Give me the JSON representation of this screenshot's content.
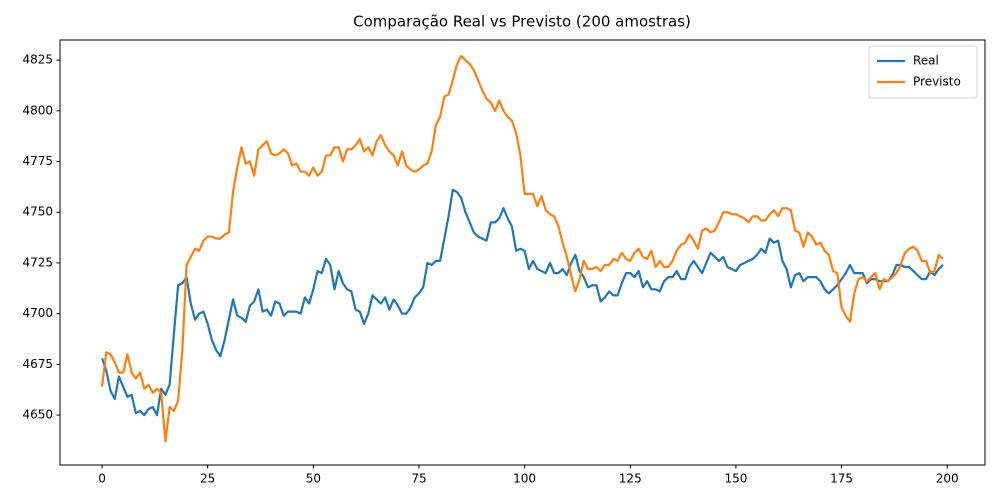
{
  "chart_data": {
    "type": "line",
    "title": "Comparação Real vs Previsto (200 amostras)",
    "x": [
      0,
      1,
      2,
      3,
      4,
      5,
      6,
      7,
      8,
      9,
      10,
      11,
      12,
      13,
      14,
      15,
      16,
      17,
      18,
      19,
      20,
      21,
      22,
      23,
      24,
      25,
      26,
      27,
      28,
      29,
      30,
      31,
      32,
      33,
      34,
      35,
      36,
      37,
      38,
      39,
      40,
      41,
      42,
      43,
      44,
      45,
      46,
      47,
      48,
      49,
      50,
      51,
      52,
      53,
      54,
      55,
      56,
      57,
      58,
      59,
      60,
      61,
      62,
      63,
      64,
      65,
      66,
      67,
      68,
      69,
      70,
      71,
      72,
      73,
      74,
      75,
      76,
      77,
      78,
      79,
      80,
      81,
      82,
      83,
      84,
      85,
      86,
      87,
      88,
      89,
      90,
      91,
      92,
      93,
      94,
      95,
      96,
      97,
      98,
      99,
      100,
      101,
      102,
      103,
      104,
      105,
      106,
      107,
      108,
      109,
      110,
      111,
      112,
      113,
      114,
      115,
      116,
      117,
      118,
      119,
      120,
      121,
      122,
      123,
      124,
      125,
      126,
      127,
      128,
      129,
      130,
      131,
      132,
      133,
      134,
      135,
      136,
      137,
      138,
      139,
      140,
      141,
      142,
      143,
      144,
      145,
      146,
      147,
      148,
      149,
      150,
      151,
      152,
      153,
      154,
      155,
      156,
      157,
      158,
      159,
      160,
      161,
      162,
      163,
      164,
      165,
      166,
      167,
      168,
      169,
      170,
      171,
      172,
      173,
      174,
      175,
      176,
      177,
      178,
      179,
      180,
      181,
      182,
      183,
      184,
      185,
      186,
      187,
      188,
      189,
      190,
      191,
      192,
      193,
      194,
      195,
      196,
      197,
      198,
      199
    ],
    "series": [
      {
        "name": "Real",
        "color": "#1f77b4",
        "values": [
          4678,
          4672,
          4662,
          4658,
          4669,
          4664,
          4659,
          4660,
          4651,
          4652,
          4650,
          4653,
          4654,
          4650,
          4663,
          4660,
          4665,
          4690,
          4714,
          4715,
          4718,
          4705,
          4697,
          4700,
          4701,
          4695,
          4687,
          4682,
          4679,
          4687,
          4697,
          4707,
          4699,
          4698,
          4696,
          4704,
          4706,
          4712,
          4701,
          4702,
          4699,
          4706,
          4705,
          4699,
          4701,
          4701,
          4701,
          4700,
          4708,
          4705,
          4712,
          4721,
          4720,
          4727,
          4724,
          4712,
          4721,
          4715,
          4712,
          4711,
          4702,
          4701,
          4695,
          4700,
          4709,
          4707,
          4705,
          4708,
          4702,
          4707,
          4704,
          4700,
          4700,
          4703,
          4708,
          4710,
          4713,
          4725,
          4724,
          4726,
          4726,
          4737,
          4748,
          4761,
          4760,
          4757,
          4750,
          4745,
          4740,
          4738,
          4737,
          4736,
          4745,
          4745,
          4747,
          4752,
          4747,
          4743,
          4731,
          4732,
          4731,
          4722,
          4726,
          4722,
          4721,
          4720,
          4725,
          4720,
          4720,
          4722,
          4719,
          4725,
          4729,
          4721,
          4718,
          4713,
          4714,
          4714,
          4706,
          4708,
          4711,
          4709,
          4709,
          4715,
          4720,
          4720,
          4718,
          4721,
          4713,
          4716,
          4712,
          4712,
          4711,
          4716,
          4718,
          4718,
          4721,
          4717,
          4717,
          4723,
          4726,
          4723,
          4720,
          4725,
          4730,
          4728,
          4726,
          4728,
          4723,
          4722,
          4721,
          4724,
          4725,
          4726,
          4727,
          4729,
          4732,
          4730,
          4737,
          4735,
          4736,
          4726,
          4722,
          4713,
          4719,
          4720,
          4716,
          4718,
          4718,
          4718,
          4716,
          4712,
          4710,
          4712,
          4714,
          4717,
          4720,
          4724,
          4720,
          4720,
          4720,
          4715,
          4717,
          4717,
          4716,
          4716,
          4716,
          4719,
          4724,
          4724,
          4723,
          4723,
          4721,
          4719,
          4717,
          4717,
          4721,
          4719,
          4722,
          4724
        ]
      },
      {
        "name": "Previsto",
        "color": "#ff7f0e",
        "values": [
          4664,
          4681,
          4680,
          4676,
          4671,
          4671,
          4680,
          4671,
          4668,
          4671,
          4663,
          4665,
          4661,
          4663,
          4661,
          4637,
          4654,
          4652,
          4657,
          4682,
          4724,
          4728,
          4732,
          4731,
          4736,
          4738,
          4738,
          4737,
          4737,
          4739,
          4740,
          4760,
          4772,
          4782,
          4774,
          4775,
          4768,
          4781,
          4783,
          4785,
          4779,
          4778,
          4779,
          4781,
          4779,
          4773,
          4774,
          4770,
          4770,
          4768,
          4772,
          4768,
          4770,
          4778,
          4778,
          4782,
          4782,
          4775,
          4781,
          4781,
          4783,
          4786,
          4780,
          4782,
          4778,
          4785,
          4788,
          4783,
          4780,
          4778,
          4773,
          4780,
          4773,
          4771,
          4770,
          4771,
          4773,
          4774,
          4780,
          4793,
          4797,
          4807,
          4808,
          4815,
          4823,
          4827,
          4825,
          4823,
          4820,
          4815,
          4810,
          4806,
          4804,
          4800,
          4805,
          4800,
          4797,
          4795,
          4789,
          4778,
          4759,
          4759,
          4759,
          4753,
          4758,
          4751,
          4749,
          4748,
          4743,
          4735,
          4728,
          4719,
          4711,
          4717,
          4726,
          4722,
          4722,
          4723,
          4721,
          4724,
          4724,
          4727,
          4726,
          4730,
          4727,
          4726,
          4730,
          4732,
          4728,
          4727,
          4731,
          4723,
          4726,
          4723,
          4723,
          4726,
          4731,
          4734,
          4735,
          4739,
          4736,
          4732,
          4741,
          4742,
          4740,
          4741,
          4745,
          4750,
          4750,
          4749,
          4749,
          4748,
          4747,
          4745,
          4748,
          4748,
          4746,
          4746,
          4749,
          4751,
          4748,
          4752,
          4752,
          4751,
          4741,
          4740,
          4733,
          4740,
          4738,
          4734,
          4735,
          4731,
          4729,
          4721,
          4720,
          4703,
          4699,
          4696,
          4710,
          4717,
          4718,
          4716,
          4718,
          4720,
          4712,
          4717,
          4716,
          4718,
          4720,
          4724,
          4730,
          4732,
          4733,
          4731,
          4726,
          4726,
          4720,
          4721,
          4729,
          4727
        ]
      }
    ],
    "xlim": [
      -9.95,
      208.95
    ],
    "xticks": [
      0,
      25,
      50,
      75,
      100,
      125,
      150,
      175,
      200
    ],
    "ylim": [
      4625.4,
      4834.9
    ],
    "yticks": [
      4650,
      4675,
      4700,
      4725,
      4750,
      4775,
      4800,
      4825
    ],
    "grid": false,
    "legend": "upper right"
  }
}
